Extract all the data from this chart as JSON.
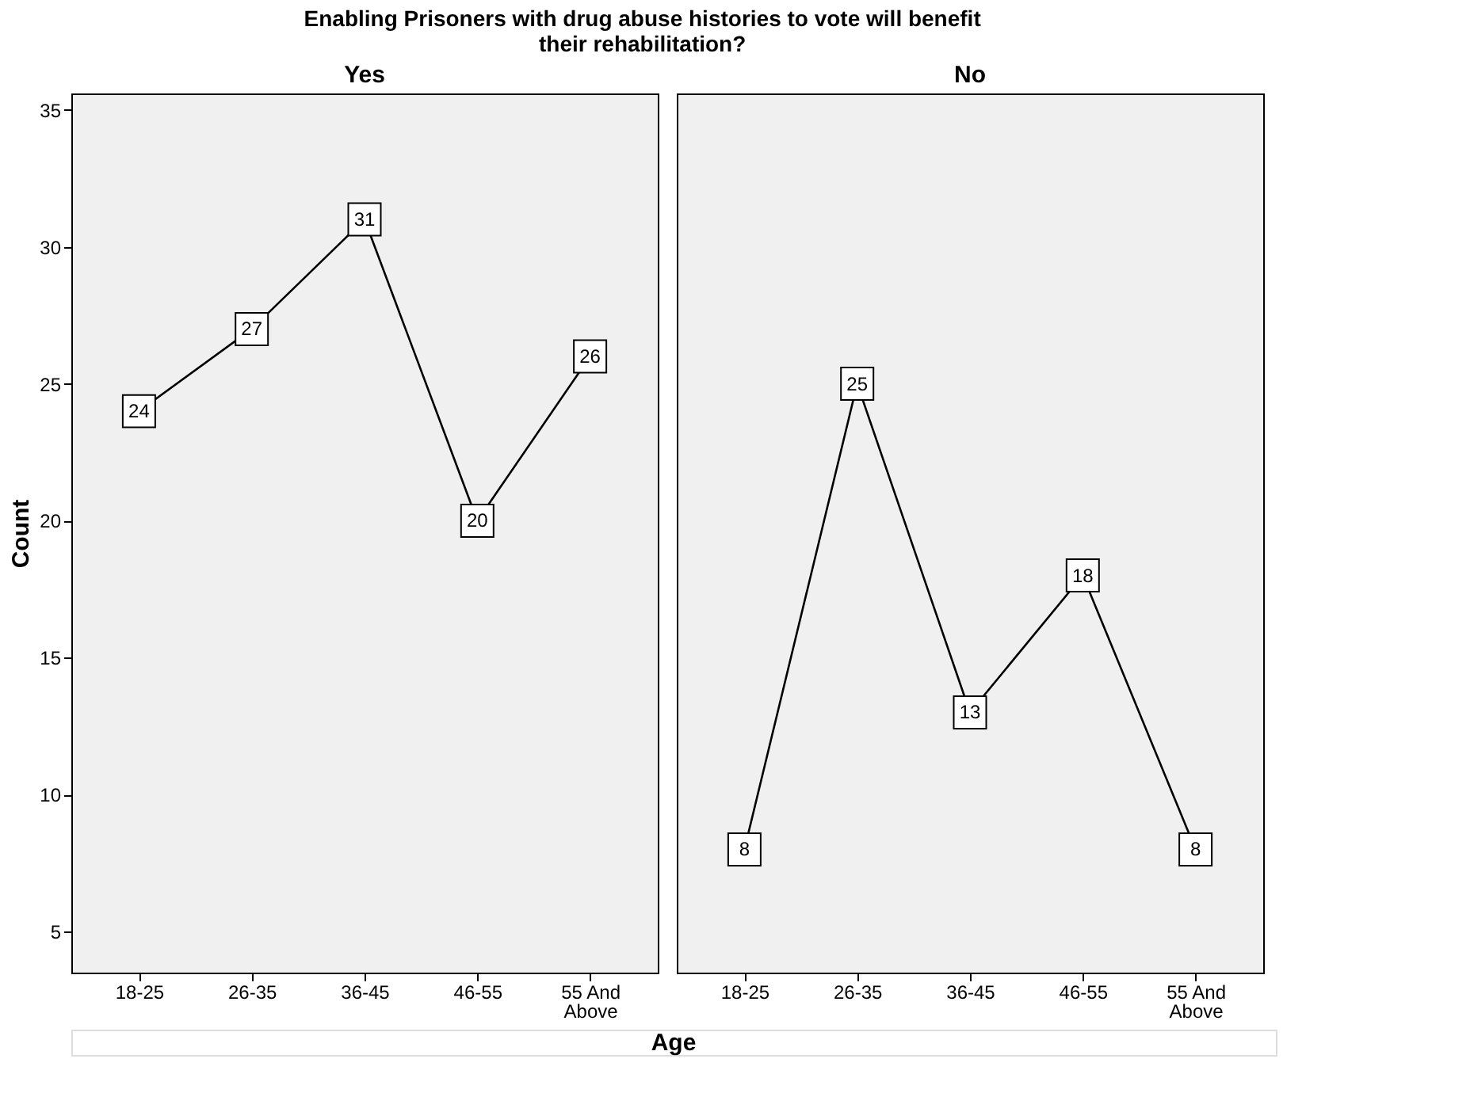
{
  "chart_data": [
    {
      "type": "line",
      "title": "Enabling Prisoners with drug abuse histories to vote will benefit their rehabilitation?",
      "subtitle": "Yes",
      "xlabel": "Age",
      "ylabel": "Count",
      "categories": [
        "18-25",
        "26-35",
        "36-45",
        "46-55",
        "55 And Above"
      ],
      "series": [
        {
          "color": "#000000",
          "values": [
            24,
            27,
            31,
            20,
            26
          ]
        }
      ],
      "ylim": [
        3.5,
        35.6
      ],
      "yticks": [
        5,
        10,
        15,
        20,
        25,
        30,
        35
      ],
      "data_labels": true,
      "marker": "square",
      "line_style": "solid",
      "grid": false
    },
    {
      "type": "line",
      "subtitle": "No",
      "categories": [
        "18-25",
        "26-35",
        "36-45",
        "46-55",
        "55 And Above"
      ],
      "series": [
        {
          "color": "#000000",
          "values": [
            8,
            25,
            13,
            18,
            8
          ]
        }
      ],
      "ylim": [
        3.5,
        35.6
      ],
      "yticks": [
        5,
        10,
        15,
        20,
        25,
        30,
        35
      ],
      "data_labels": true,
      "marker": "square",
      "line_style": "solid",
      "grid": false,
      "tick_labels": "x"
    }
  ]
}
